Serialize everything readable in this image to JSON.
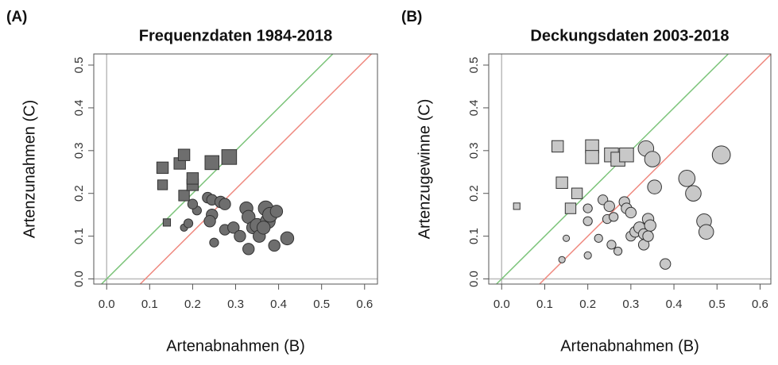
{
  "chart_data": [
    {
      "type": "scatter",
      "panel_label": "(A)",
      "title": "Frequenzdaten 1984-2018",
      "x_label": "Artenabnahmen (B)",
      "y_label": "Artenzunahmen (C)",
      "xlim": [
        -0.03,
        0.63
      ],
      "ylim": [
        -0.012,
        0.526
      ],
      "xticks": [
        {
          "value": 0,
          "label": "0.0"
        },
        0.1,
        0.2,
        0.3,
        0.4,
        0.5,
        0.6
      ],
      "yticks": [
        {
          "value": 0,
          "label": "0.0"
        },
        0.1,
        0.2,
        0.3,
        0.4,
        0.5
      ],
      "lines": [
        {
          "slope": 1,
          "intercept": 0,
          "color": "#7cc47a"
        },
        {
          "slope": 1,
          "intercept": -0.09,
          "color": "#ef8a80"
        }
      ],
      "series": [
        {
          "marker": "square",
          "color": "#6e6e6e",
          "x": [
            0.13,
            0.13,
            0.17,
            0.18,
            0.18,
            0.2,
            0.2,
            0.245,
            0.285,
            0.14
          ],
          "values": [
            0.26,
            0.22,
            0.27,
            0.29,
            0.195,
            0.22,
            0.235,
            0.272,
            0.285,
            0.132
          ],
          "sizes": [
            2,
            1.6,
            2,
            2,
            1.8,
            2,
            2,
            2.6,
            2.8,
            1
          ]
        },
        {
          "marker": "circle",
          "color": "#6e6e6e",
          "x": [
            0.18,
            0.19,
            0.21,
            0.2,
            0.235,
            0.245,
            0.245,
            0.24,
            0.25,
            0.265,
            0.275,
            0.275,
            0.295,
            0.31,
            0.325,
            0.33,
            0.33,
            0.34,
            0.35,
            0.355,
            0.37,
            0.375,
            0.38,
            0.395,
            0.39,
            0.42,
            0.365
          ],
          "values": [
            0.12,
            0.13,
            0.16,
            0.175,
            0.19,
            0.185,
            0.15,
            0.135,
            0.085,
            0.18,
            0.175,
            0.115,
            0.12,
            0.1,
            0.165,
            0.145,
            0.07,
            0.12,
            0.125,
            0.1,
            0.165,
            0.135,
            0.15,
            0.158,
            0.078,
            0.095,
            0.12
          ],
          "sizes": [
            1,
            1.4,
            1.4,
            1.6,
            1.8,
            1.8,
            2,
            2,
            1.4,
            2,
            2,
            1.8,
            2,
            2,
            2.4,
            2.4,
            2,
            2.2,
            2.6,
            2.2,
            2.8,
            2.8,
            2.8,
            2.2,
            2,
            2.4,
            2.4
          ]
        }
      ]
    },
    {
      "type": "scatter",
      "panel_label": "(B)",
      "title": "Deckungsdaten 2003-2018",
      "x_label": "Artenabnahmen (B)",
      "y_label": "Artenzugewinne (C)",
      "xlim": [
        -0.03,
        0.625
      ],
      "ylim": [
        -0.012,
        0.526
      ],
      "xticks": [
        {
          "value": 0,
          "label": "0.0"
        },
        0.1,
        0.2,
        0.3,
        0.4,
        0.5,
        0.6
      ],
      "yticks": [
        {
          "value": 0,
          "label": "0.0"
        },
        0.1,
        0.2,
        0.3,
        0.4,
        0.5
      ],
      "lines": [
        {
          "slope": 1,
          "intercept": 0,
          "color": "#7cc47a"
        },
        {
          "slope": 1,
          "intercept": -0.1,
          "color": "#ef8a80"
        }
      ],
      "series": [
        {
          "marker": "square",
          "color": "#c8c8c8",
          "x": [
            0.035,
            0.13,
            0.14,
            0.16,
            0.175,
            0.21,
            0.21,
            0.255,
            0.27,
            0.29
          ],
          "values": [
            0.17,
            0.31,
            0.225,
            0.165,
            0.2,
            0.31,
            0.285,
            0.29,
            0.28,
            0.29
          ],
          "sizes": [
            0.8,
            2,
            2,
            1.8,
            1.8,
            2.4,
            2.4,
            2.6,
            2.6,
            2.6
          ]
        },
        {
          "marker": "circle",
          "color": "#c8c8c8",
          "x": [
            0.15,
            0.14,
            0.2,
            0.2,
            0.2,
            0.225,
            0.235,
            0.245,
            0.25,
            0.255,
            0.26,
            0.27,
            0.285,
            0.29,
            0.3,
            0.3,
            0.31,
            0.32,
            0.33,
            0.33,
            0.34,
            0.345,
            0.34,
            0.335,
            0.35,
            0.355,
            0.38,
            0.43,
            0.445,
            0.47,
            0.475,
            0.51
          ],
          "values": [
            0.095,
            0.045,
            0.055,
            0.165,
            0.135,
            0.095,
            0.185,
            0.14,
            0.17,
            0.08,
            0.145,
            0.065,
            0.18,
            0.165,
            0.155,
            0.1,
            0.11,
            0.12,
            0.08,
            0.105,
            0.14,
            0.125,
            0.1,
            0.305,
            0.28,
            0.215,
            0.035,
            0.235,
            0.2,
            0.135,
            0.11,
            0.29
          ],
          "sizes": [
            0.8,
            0.8,
            1,
            1.4,
            1.4,
            1.2,
            1.6,
            1.4,
            1.8,
            1.4,
            1.4,
            1.2,
            1.8,
            1.8,
            1.8,
            1.6,
            1.8,
            2,
            1.8,
            1.8,
            2,
            2,
            1.8,
            3,
            3,
            2.6,
            1.8,
            3.2,
            3,
            2.8,
            2.8,
            3.6
          ]
        }
      ]
    }
  ]
}
